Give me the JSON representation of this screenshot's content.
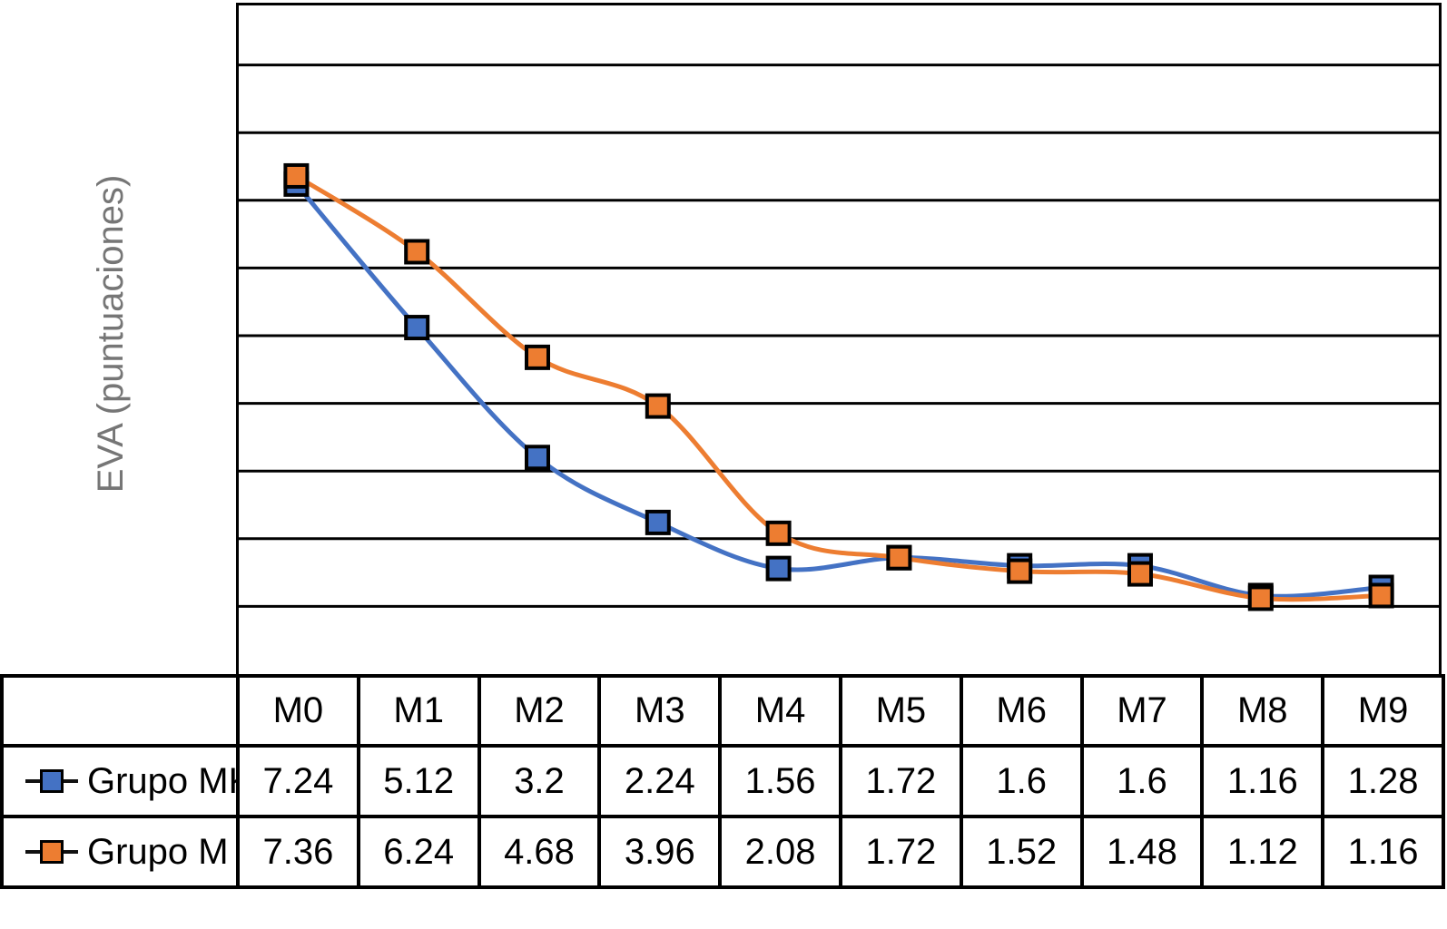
{
  "chart_data": {
    "type": "line",
    "title": "",
    "ylabel": "EVA (puntuaciones)",
    "xlabel": "",
    "categories": [
      "M0",
      "M1",
      "M2",
      "M3",
      "M4",
      "M5",
      "M6",
      "M7",
      "M8",
      "M9"
    ],
    "series": [
      {
        "name": "Grupo MK",
        "color": "#4472C4",
        "marker": "square",
        "values": [
          7.24,
          5.12,
          3.2,
          2.24,
          1.56,
          1.72,
          1.6,
          1.6,
          1.16,
          1.28
        ]
      },
      {
        "name": "Grupo M",
        "color": "#ED7D31",
        "marker": "square",
        "values": [
          7.36,
          6.24,
          4.68,
          3.96,
          2.08,
          1.72,
          1.52,
          1.48,
          1.12,
          1.16
        ]
      }
    ],
    "ylim": [
      0,
      10
    ],
    "grid": {
      "horizontal_step": 1,
      "color": "#000000",
      "vertical": false
    },
    "line_style": "smooth",
    "marker_outline": "#000000",
    "axis_label_color": "#767676",
    "legend_position": "table-left-column"
  },
  "table": {
    "corner_label": "",
    "column_headers": [
      "M0",
      "M1",
      "M2",
      "M3",
      "M4",
      "M5",
      "M6",
      "M7",
      "M8",
      "M9"
    ],
    "rows": [
      {
        "label": "Grupo MK",
        "marker_color": "#4472C4",
        "values": [
          "7.24",
          "5.12",
          "3.2",
          "2.24",
          "1.56",
          "1.72",
          "1.6",
          "1.6",
          "1.16",
          "1.28"
        ]
      },
      {
        "label": "Grupo M",
        "marker_color": "#ED7D31",
        "values": [
          "7.36",
          "6.24",
          "4.68",
          "3.96",
          "2.08",
          "1.72",
          "1.52",
          "1.48",
          "1.12",
          "1.16"
        ]
      }
    ]
  }
}
